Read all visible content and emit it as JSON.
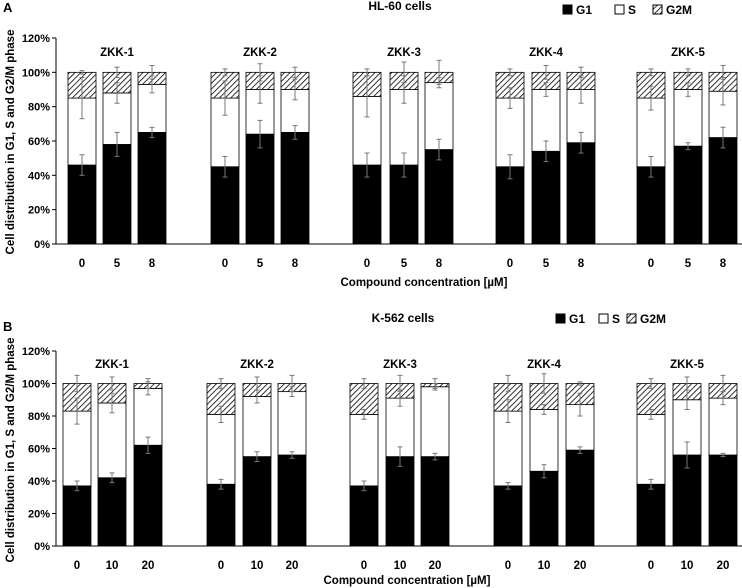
{
  "chart_data": [
    {
      "panel_letter": "A",
      "type": "bar",
      "stacked": true,
      "title": "HL-60 cells",
      "ylabel": "Cell distribution in G1, S and G2/M phase",
      "xlabel": "Compound concentration [µM]",
      "ylim": [
        0,
        120
      ],
      "yticks": [
        "0%",
        "20%",
        "40%",
        "60%",
        "80%",
        "100%",
        "120%"
      ],
      "legend": [
        "G1",
        "S",
        "G2M"
      ],
      "legend_position": "top-right",
      "groups": [
        {
          "name": "ZKK-1",
          "categories": [
            "0",
            "5",
            "8"
          ],
          "g1": [
            46,
            58,
            65
          ],
          "s": [
            39,
            30,
            28
          ],
          "g2m": [
            15,
            12,
            7
          ],
          "g1_err": [
            6,
            7,
            3
          ],
          "s_err": [
            12,
            6,
            5
          ],
          "top_err": [
            1,
            3,
            4
          ]
        },
        {
          "name": "ZKK-2",
          "categories": [
            "0",
            "5",
            "8"
          ],
          "g1": [
            45,
            64,
            65
          ],
          "s": [
            40,
            26,
            25
          ],
          "g2m": [
            15,
            10,
            10
          ],
          "g1_err": [
            6,
            8,
            4
          ],
          "s_err": [
            10,
            8,
            6
          ],
          "top_err": [
            2,
            5,
            3
          ]
        },
        {
          "name": "ZKK-3",
          "categories": [
            "0",
            "5",
            "8"
          ],
          "g1": [
            46,
            46,
            55
          ],
          "s": [
            40,
            44,
            39
          ],
          "g2m": [
            14,
            10,
            6
          ],
          "g1_err": [
            7,
            7,
            6
          ],
          "s_err": [
            12,
            8,
            3
          ],
          "top_err": [
            2,
            6,
            7
          ]
        },
        {
          "name": "ZKK-4",
          "categories": [
            "0",
            "5",
            "8"
          ],
          "g1": [
            45,
            54,
            59
          ],
          "s": [
            40,
            36,
            31
          ],
          "g2m": [
            15,
            10,
            10
          ],
          "g1_err": [
            7,
            6,
            6
          ],
          "s_err": [
            6,
            4,
            8
          ],
          "top_err": [
            2,
            4,
            3
          ]
        },
        {
          "name": "ZKK-5",
          "categories": [
            "0",
            "5",
            "8"
          ],
          "g1": [
            45,
            57,
            62
          ],
          "s": [
            40,
            33,
            27
          ],
          "g2m": [
            15,
            10,
            11
          ],
          "g1_err": [
            6,
            2,
            6
          ],
          "s_err": [
            7,
            4,
            8
          ],
          "top_err": [
            2,
            2,
            4
          ]
        }
      ]
    },
    {
      "panel_letter": "B",
      "type": "bar",
      "stacked": true,
      "title": "K-562 cells",
      "ylabel": "Cell distribution in G1, S and G2/M phase",
      "xlabel": "Compound concentration [µM]",
      "ylim": [
        0,
        120
      ],
      "yticks": [
        "0%",
        "20%",
        "40%",
        "60%",
        "80%",
        "100%",
        "120%"
      ],
      "legend": [
        "G1",
        "S",
        "G2M"
      ],
      "legend_position": "top-right",
      "groups": [
        {
          "name": "ZKK-1",
          "categories": [
            "0",
            "10",
            "20"
          ],
          "g1": [
            37,
            42,
            62
          ],
          "s": [
            46,
            46,
            35
          ],
          "g2m": [
            17,
            12,
            3
          ],
          "g1_err": [
            3,
            3,
            5
          ],
          "s_err": [
            8,
            6,
            4
          ],
          "top_err": [
            5,
            4,
            3
          ]
        },
        {
          "name": "ZKK-2",
          "categories": [
            "0",
            "10",
            "20"
          ],
          "g1": [
            38,
            55,
            56
          ],
          "s": [
            43,
            37,
            39
          ],
          "g2m": [
            19,
            8,
            5
          ],
          "g1_err": [
            3,
            3,
            2
          ],
          "s_err": [
            5,
            4,
            3
          ],
          "top_err": [
            3,
            4,
            5
          ]
        },
        {
          "name": "ZKK-3",
          "categories": [
            "0",
            "10",
            "20"
          ],
          "g1": [
            37,
            55,
            55
          ],
          "s": [
            44,
            36,
            43
          ],
          "g2m": [
            19,
            9,
            2
          ],
          "g1_err": [
            3,
            6,
            2
          ],
          "s_err": [
            3,
            5,
            2
          ],
          "top_err": [
            3,
            5,
            3
          ]
        },
        {
          "name": "ZKK-4",
          "categories": [
            "0",
            "10",
            "20"
          ],
          "g1": [
            37,
            46,
            59
          ],
          "s": [
            46,
            38,
            28
          ],
          "g2m": [
            17,
            16,
            13
          ],
          "g1_err": [
            2,
            4,
            2
          ],
          "s_err": [
            7,
            3,
            7
          ],
          "top_err": [
            5,
            6,
            1
          ]
        },
        {
          "name": "ZKK-5",
          "categories": [
            "0",
            "10",
            "20"
          ],
          "g1": [
            38,
            56,
            56
          ],
          "s": [
            43,
            34,
            35
          ],
          "g2m": [
            19,
            10,
            9
          ],
          "g1_err": [
            3,
            8,
            1
          ],
          "s_err": [
            3,
            6,
            4
          ],
          "top_err": [
            3,
            4,
            5
          ]
        }
      ]
    }
  ]
}
